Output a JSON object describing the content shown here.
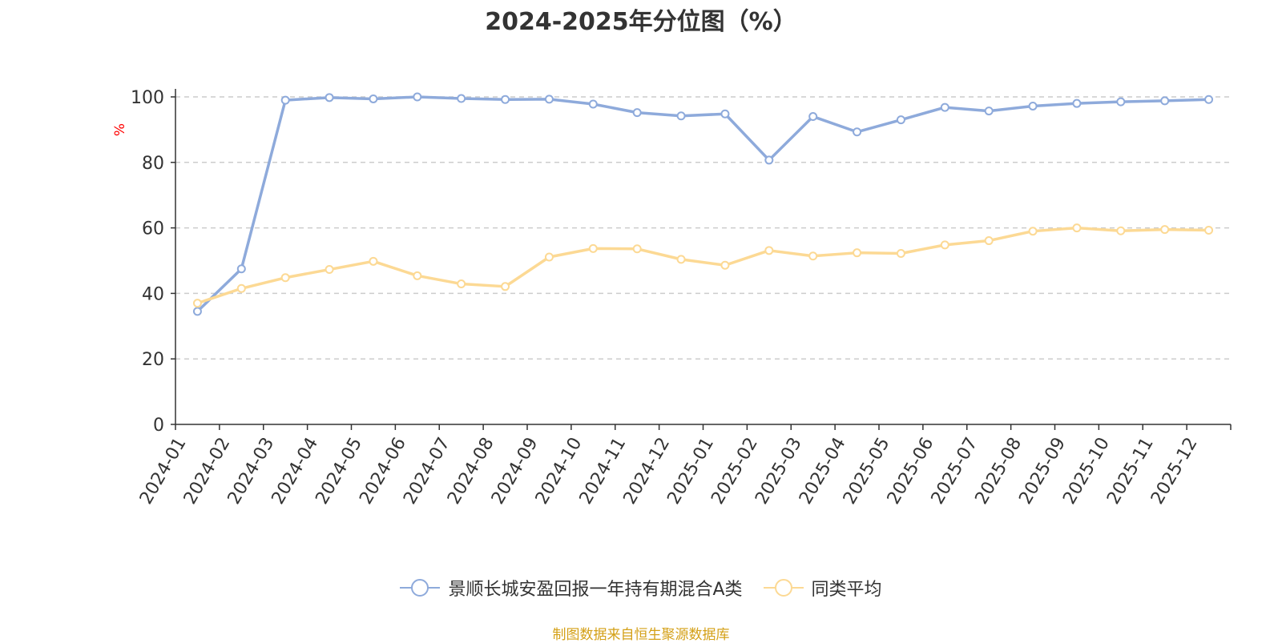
{
  "chart_data": {
    "type": "line",
    "title": "2024-2025年分位图（%）",
    "ylabel": "%",
    "xlabel": "",
    "ylim": [
      0,
      100
    ],
    "yticks": [
      0,
      20,
      40,
      60,
      80,
      100
    ],
    "grid": true,
    "legend_position": "bottom-center",
    "categories": [
      "2024-01",
      "2024-02",
      "2024-03",
      "2024-04",
      "2024-05",
      "2024-06",
      "2024-07",
      "2024-08",
      "2024-09",
      "2024-10",
      "2024-11",
      "2024-12",
      "2025-01",
      "2025-02",
      "2025-03",
      "2025-04",
      "2025-05",
      "2025-06",
      "2025-07",
      "2025-08",
      "2025-09",
      "2025-10",
      "2025-11",
      "2025-12"
    ],
    "series": [
      {
        "name": "景顺长城安盈回报一年持有期混合A类",
        "color": "#8eaadb",
        "values": [
          34.5,
          47.5,
          99.0,
          99.8,
          99.4,
          100.0,
          99.5,
          99.2,
          99.3,
          97.8,
          95.2,
          94.2,
          94.8,
          80.7,
          94.0,
          89.3,
          93.0,
          96.8,
          95.7,
          97.2,
          98.0,
          98.5,
          98.8,
          99.2
        ]
      },
      {
        "name": "同类平均",
        "color": "#fcd994",
        "values": [
          37.0,
          41.5,
          44.8,
          47.3,
          49.8,
          45.4,
          42.9,
          42.1,
          51.1,
          53.7,
          53.6,
          50.4,
          48.6,
          53.1,
          51.4,
          52.4,
          52.2,
          54.8,
          56.1,
          59.0,
          60.0,
          59.1,
          59.5,
          59.3
        ]
      }
    ]
  },
  "source_text": "制图数据来自恒生聚源数据库",
  "colors": {
    "axis": "#333333",
    "grid": "#cccccc",
    "ylabel": "#ff0000",
    "source": "#d4a017"
  }
}
